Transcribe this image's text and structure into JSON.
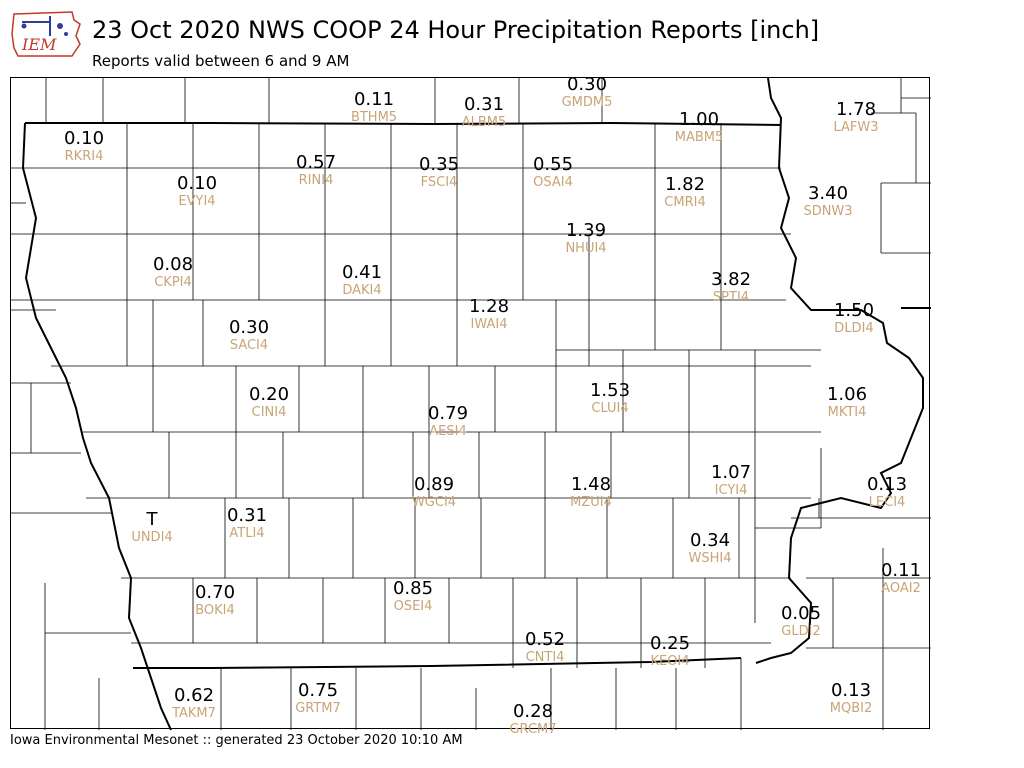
{
  "header": {
    "logo_text": "IEM",
    "title": "23 Oct 2020 NWS COOP 24 Hour Precipitation Reports [inch]",
    "subtitle": "Reports valid between 6 and 9 AM"
  },
  "footer": {
    "text": "Iowa Environmental Mesonet :: generated 23 October 2020 10:10 AM"
  },
  "colors": {
    "value": "#000000",
    "station_id": "#c8a476",
    "logo_red": "#c0392b",
    "logo_blue": "#2c3e9e"
  },
  "stations": [
    {
      "id": "BTHM5",
      "value": "0.11"
    },
    {
      "id": "GMDM5",
      "value": "0.30"
    },
    {
      "id": "ALBM5",
      "value": "0.31"
    },
    {
      "id": "MABM5",
      "value": "1.00"
    },
    {
      "id": "LAFW3",
      "value": "1.78"
    },
    {
      "id": "RKRI4",
      "value": "0.10"
    },
    {
      "id": "RINI4",
      "value": "0.57"
    },
    {
      "id": "FSCI4",
      "value": "0.35"
    },
    {
      "id": "OSAI4",
      "value": "0.55"
    },
    {
      "id": "EVYI4",
      "value": "0.10"
    },
    {
      "id": "CMRI4",
      "value": "1.82"
    },
    {
      "id": "SDNW3",
      "value": "3.40"
    },
    {
      "id": "NHUI4",
      "value": "1.39"
    },
    {
      "id": "CKPI4",
      "value": "0.08"
    },
    {
      "id": "DAKI4",
      "value": "0.41"
    },
    {
      "id": "SPTI4",
      "value": "3.82"
    },
    {
      "id": "IWAI4",
      "value": "1.28"
    },
    {
      "id": "DLDI4",
      "value": "1.50"
    },
    {
      "id": "SACI4",
      "value": "0.30"
    },
    {
      "id": "CLUI4",
      "value": "1.53"
    },
    {
      "id": "CINI4",
      "value": "0.20"
    },
    {
      "id": "MKTI4",
      "value": "1.06"
    },
    {
      "id": "AESI4",
      "value": "0.79"
    },
    {
      "id": "ICYI4",
      "value": "1.07"
    },
    {
      "id": "WGCI4",
      "value": "0.89"
    },
    {
      "id": "MZUI4",
      "value": "1.48"
    },
    {
      "id": "LECI4",
      "value": "0.13"
    },
    {
      "id": "UNDI4",
      "value": "T"
    },
    {
      "id": "ATLI4",
      "value": "0.31"
    },
    {
      "id": "WSHI4",
      "value": "0.34"
    },
    {
      "id": "AOAI2",
      "value": "0.11"
    },
    {
      "id": "BOKI4",
      "value": "0.70"
    },
    {
      "id": "OSEI4",
      "value": "0.85"
    },
    {
      "id": "GLDI2",
      "value": "0.05"
    },
    {
      "id": "CNTI4",
      "value": "0.52"
    },
    {
      "id": "KEOI4",
      "value": "0.25"
    },
    {
      "id": "TAKM7",
      "value": "0.62"
    },
    {
      "id": "GRTM7",
      "value": "0.75"
    },
    {
      "id": "MQBI2",
      "value": "0.13"
    },
    {
      "id": "GRCM7",
      "value": "0.28"
    }
  ]
}
